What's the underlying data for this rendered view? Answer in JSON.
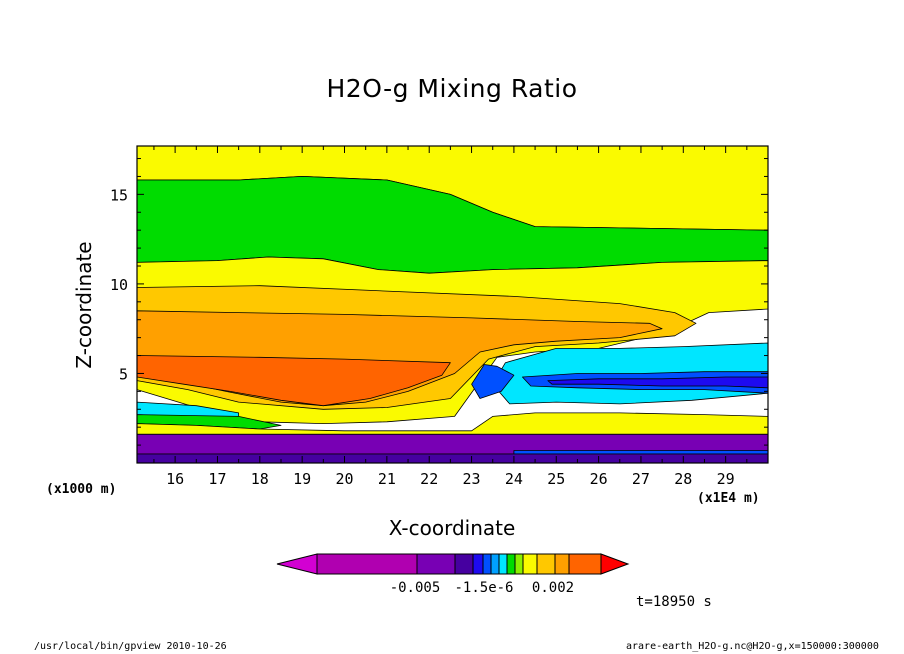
{
  "chart_data": {
    "type": "heatmap",
    "title": "H2O-g Mixing Ratio",
    "xlabel": "X-coordinate",
    "ylabel": "Z-coordinate",
    "x_unit": "(x1E4 m)",
    "y_unit": "(x1000 m)",
    "xlim": [
      15.1,
      30.0
    ],
    "ylim": [
      0,
      17.7
    ],
    "x_ticks": [
      "16",
      "17",
      "18",
      "19",
      "20",
      "21",
      "22",
      "23",
      "24",
      "25",
      "26",
      "27",
      "28",
      "29"
    ],
    "y_ticks": [
      "5",
      "10",
      "15"
    ],
    "colorbar": {
      "colors": [
        "#d200d2",
        "#b000b0",
        "#7800b4",
        "#4600a0",
        "#1e0af0",
        "#0050ff",
        "#00a0ff",
        "#00e6ff",
        "#00dc00",
        "#8cf000",
        "#fafa00",
        "#ffc800",
        "#ffa000",
        "#ff6400",
        "#ff0000"
      ],
      "tick_labels": [
        "-0.005",
        "-1.5e-6",
        "0.002"
      ]
    },
    "time_label": "t=18950 s",
    "regions": [
      {
        "name": "upper-yellow",
        "color": "#fafa00",
        "polygon": [
          [
            15.1,
            17.7
          ],
          [
            30,
            17.7
          ],
          [
            30,
            13
          ],
          [
            24.5,
            13.2
          ],
          [
            23.5,
            14
          ],
          [
            22.5,
            15
          ],
          [
            21,
            15.8
          ],
          [
            19,
            16
          ],
          [
            17.5,
            15.8
          ],
          [
            15.1,
            15.8
          ]
        ]
      },
      {
        "name": "upper-green",
        "color": "#00dc00",
        "polygon": [
          [
            15.1,
            15.8
          ],
          [
            17.5,
            15.8
          ],
          [
            19,
            16
          ],
          [
            21,
            15.8
          ],
          [
            22.5,
            15
          ],
          [
            23.5,
            14
          ],
          [
            24.5,
            13.2
          ],
          [
            30,
            13
          ],
          [
            30,
            11.3
          ],
          [
            27.5,
            11.2
          ],
          [
            25.5,
            10.9
          ],
          [
            23.5,
            10.8
          ],
          [
            22,
            10.6
          ],
          [
            20.8,
            10.8
          ],
          [
            19.5,
            11.4
          ],
          [
            18.2,
            11.5
          ],
          [
            17,
            11.3
          ],
          [
            15.1,
            11.2
          ]
        ]
      },
      {
        "name": "mid-yellow",
        "color": "#fafa00",
        "polygon": [
          [
            15.1,
            11.2
          ],
          [
            17,
            11.3
          ],
          [
            18.2,
            11.5
          ],
          [
            19.5,
            11.4
          ],
          [
            20.8,
            10.8
          ],
          [
            22,
            10.6
          ],
          [
            23.5,
            10.8
          ],
          [
            25.5,
            10.9
          ],
          [
            27.5,
            11.2
          ],
          [
            30,
            11.3
          ],
          [
            30,
            8.6
          ],
          [
            28.6,
            8.4
          ],
          [
            27.6,
            7.3
          ],
          [
            26,
            6.4
          ],
          [
            24.5,
            6.2
          ],
          [
            23.6,
            5.9
          ],
          [
            22.6,
            2.6
          ],
          [
            21,
            2.3
          ],
          [
            19.5,
            2.2
          ],
          [
            18,
            2.3
          ],
          [
            16.5,
            3.1
          ],
          [
            15.1,
            4.1
          ]
        ]
      },
      {
        "name": "light-orange",
        "color": "#ffc800",
        "polygon": [
          [
            15.1,
            9.8
          ],
          [
            18,
            9.9
          ],
          [
            21,
            9.6
          ],
          [
            24,
            9.3
          ],
          [
            26.5,
            8.9
          ],
          [
            27.8,
            8.4
          ],
          [
            28.3,
            7.8
          ],
          [
            27.8,
            7.1
          ],
          [
            26,
            6.7
          ],
          [
            24.5,
            6.5
          ],
          [
            23.4,
            5.8
          ],
          [
            22.5,
            3.6
          ],
          [
            21,
            3.1
          ],
          [
            19.5,
            3
          ],
          [
            17.5,
            3.4
          ],
          [
            16.3,
            4.1
          ],
          [
            15.1,
            4.6
          ]
        ]
      },
      {
        "name": "mid-orange",
        "color": "#ffa000",
        "polygon": [
          [
            15.1,
            8.5
          ],
          [
            17.5,
            8.4
          ],
          [
            20,
            8.3
          ],
          [
            23,
            8.1
          ],
          [
            25.5,
            7.9
          ],
          [
            27.2,
            7.8
          ],
          [
            27.5,
            7.5
          ],
          [
            26.5,
            7
          ],
          [
            25,
            6.8
          ],
          [
            24,
            6.6
          ],
          [
            23.2,
            6.2
          ],
          [
            22.6,
            5
          ],
          [
            21.5,
            4
          ],
          [
            20.5,
            3.4
          ],
          [
            19.5,
            3.2
          ],
          [
            18.5,
            3.4
          ],
          [
            17.2,
            4
          ],
          [
            16,
            4.6
          ],
          [
            15.1,
            5
          ]
        ]
      },
      {
        "name": "dark-orange",
        "color": "#ff6400",
        "polygon": [
          [
            15.1,
            6
          ],
          [
            18,
            5.9
          ],
          [
            20,
            5.8
          ],
          [
            22.5,
            5.6
          ],
          [
            22.3,
            4.9
          ],
          [
            21.5,
            4.2
          ],
          [
            20.6,
            3.6
          ],
          [
            19.5,
            3.2
          ],
          [
            18.5,
            3.5
          ],
          [
            17.3,
            4
          ],
          [
            16.2,
            4.4
          ],
          [
            15.1,
            4.8
          ]
        ]
      },
      {
        "name": "cyan-zone",
        "color": "#00e6ff",
        "polygon": [
          [
            23.8,
            5.6
          ],
          [
            25,
            6.4
          ],
          [
            26.5,
            6.4
          ],
          [
            28,
            6.5
          ],
          [
            30,
            6.7
          ],
          [
            30,
            3.9
          ],
          [
            28.2,
            3.5
          ],
          [
            26.5,
            3.3
          ],
          [
            25,
            3.4
          ],
          [
            23.9,
            3.3
          ],
          [
            23.5,
            4.4
          ]
        ]
      },
      {
        "name": "upper-blue",
        "color": "#0050ff",
        "polygon": [
          [
            23.3,
            5.5
          ],
          [
            23.6,
            5.4
          ],
          [
            24,
            4.9
          ],
          [
            23.7,
            4
          ],
          [
            23.2,
            3.6
          ],
          [
            23,
            4.4
          ]
        ]
      },
      {
        "name": "blue-band",
        "color": "#0050ff",
        "polygon": [
          [
            24.2,
            4.8
          ],
          [
            25.5,
            5
          ],
          [
            27,
            5
          ],
          [
            28.5,
            5.1
          ],
          [
            30,
            5.1
          ],
          [
            30,
            3.9
          ],
          [
            28.5,
            4.1
          ],
          [
            27,
            4.1
          ],
          [
            25.5,
            4.2
          ],
          [
            24.4,
            4.3
          ]
        ]
      },
      {
        "name": "dark-blue-band",
        "color": "#1e0af0",
        "polygon": [
          [
            24.8,
            4.6
          ],
          [
            26,
            4.7
          ],
          [
            27.5,
            4.7
          ],
          [
            29,
            4.8
          ],
          [
            30,
            4.8
          ],
          [
            30,
            4.2
          ],
          [
            29,
            4.3
          ],
          [
            27.5,
            4.3
          ],
          [
            26,
            4.4
          ],
          [
            24.9,
            4.4
          ]
        ]
      },
      {
        "name": "lower-cyan",
        "color": "#00e6ff",
        "polygon": [
          [
            15.1,
            3.4
          ],
          [
            16.5,
            3.2
          ],
          [
            17.5,
            2.8
          ],
          [
            17.5,
            2.6
          ],
          [
            16.2,
            2.6
          ],
          [
            15.1,
            2.7
          ]
        ]
      },
      {
        "name": "lower-green",
        "color": "#00dc00",
        "polygon": [
          [
            15.1,
            2.7
          ],
          [
            17.5,
            2.6
          ],
          [
            18.5,
            2.1
          ],
          [
            18,
            1.9
          ],
          [
            16.5,
            2.1
          ],
          [
            15.1,
            2.2
          ]
        ]
      },
      {
        "name": "lower-yellow",
        "color": "#fafa00",
        "polygon": [
          [
            15.1,
            2.2
          ],
          [
            16.5,
            2.1
          ],
          [
            18,
            1.9
          ],
          [
            20,
            1.8
          ],
          [
            23,
            1.8
          ],
          [
            23.5,
            2.6
          ],
          [
            24.5,
            2.8
          ],
          [
            26.5,
            2.8
          ],
          [
            28.5,
            2.7
          ],
          [
            30,
            2.6
          ],
          [
            30,
            1.6
          ],
          [
            15.1,
            1.6
          ]
        ]
      },
      {
        "name": "violet-layer",
        "color": "#7800b4",
        "polygon": [
          [
            15.1,
            1.6
          ],
          [
            30,
            1.6
          ],
          [
            30,
            0.5
          ],
          [
            15.1,
            0.5
          ]
        ]
      },
      {
        "name": "blue-strip",
        "color": "#0050ff",
        "polygon": [
          [
            24,
            0.5
          ],
          [
            30,
            0.5
          ],
          [
            30,
            0.7
          ],
          [
            24,
            0.7
          ]
        ]
      },
      {
        "name": "bottom-purple",
        "color": "#4600a0",
        "polygon": [
          [
            15.1,
            0.5
          ],
          [
            30,
            0.5
          ],
          [
            30,
            0
          ],
          [
            15.1,
            0
          ]
        ]
      }
    ]
  },
  "footer": {
    "path_label": "/usr/local/bin/gpview  2010-10-26",
    "file_label": "arare-earth_H2O-g.nc@H2O-g,x=150000:300000"
  }
}
